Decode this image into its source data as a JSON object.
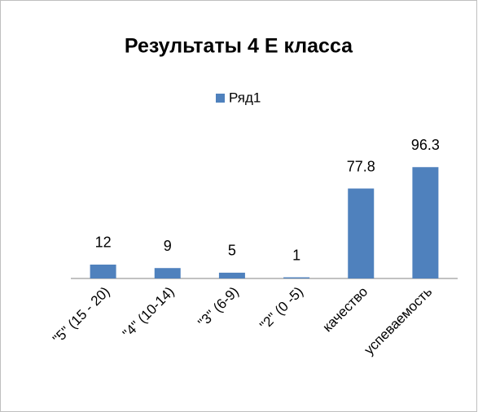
{
  "chart_data": {
    "type": "bar",
    "title": "Результаты 4 Е класса",
    "categories": [
      "\"5\" (15 - 20)",
      "\"4\" (10-14)",
      "\"3\" (6-9)",
      "\"2\"  (0 -5)",
      "качество",
      "успеваемость"
    ],
    "series": [
      {
        "name": "Ряд1",
        "color": "#4f81bd",
        "values": [
          12,
          9,
          5,
          1,
          77.8,
          96.3
        ]
      }
    ],
    "legend": "top"
  }
}
